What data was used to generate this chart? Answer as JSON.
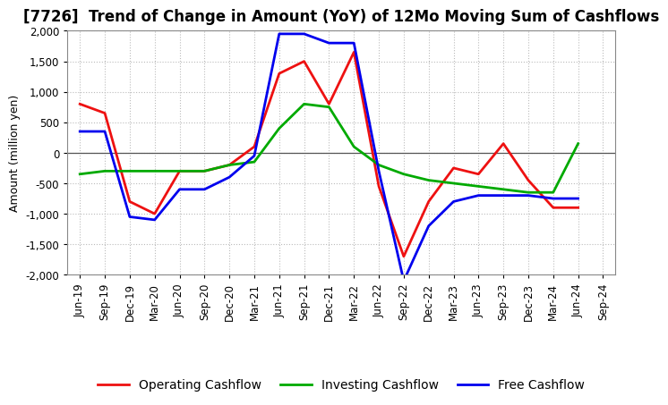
{
  "title": "[7726]  Trend of Change in Amount (YoY) of 12Mo Moving Sum of Cashflows",
  "ylabel": "Amount (million yen)",
  "xlabels": [
    "Jun-19",
    "Sep-19",
    "Dec-19",
    "Mar-20",
    "Jun-20",
    "Sep-20",
    "Dec-20",
    "Mar-21",
    "Jun-21",
    "Sep-21",
    "Dec-21",
    "Mar-22",
    "Jun-22",
    "Sep-22",
    "Dec-22",
    "Mar-23",
    "Jun-23",
    "Sep-23",
    "Dec-23",
    "Mar-24",
    "Jun-24",
    "Sep-24"
  ],
  "operating": [
    800,
    650,
    -800,
    -1000,
    -300,
    -300,
    -200,
    100,
    1300,
    1500,
    800,
    1650,
    -550,
    -1700,
    -800,
    -250,
    -350,
    150,
    -450,
    -900,
    -900,
    null
  ],
  "investing": [
    -350,
    -300,
    -300,
    -300,
    -300,
    -300,
    -200,
    -150,
    400,
    800,
    750,
    100,
    -200,
    -350,
    -450,
    -500,
    -550,
    -600,
    -650,
    -650,
    150,
    null
  ],
  "free": [
    350,
    350,
    -1050,
    -1100,
    -600,
    -600,
    -400,
    -50,
    1950,
    1950,
    1800,
    1800,
    -300,
    -2100,
    -1200,
    -800,
    -700,
    -700,
    -700,
    -750,
    -750,
    null
  ],
  "operating_color": "#EE1111",
  "investing_color": "#00AA00",
  "free_color": "#0000EE",
  "ylim": [
    -2000,
    2000
  ],
  "yticks": [
    -2000,
    -1500,
    -1000,
    -500,
    0,
    500,
    1000,
    1500,
    2000
  ],
  "background_color": "#FFFFFF",
  "grid_color": "#BBBBBB",
  "title_fontsize": 12,
  "axis_fontsize": 9,
  "legend_fontsize": 10,
  "linewidth": 2.0
}
